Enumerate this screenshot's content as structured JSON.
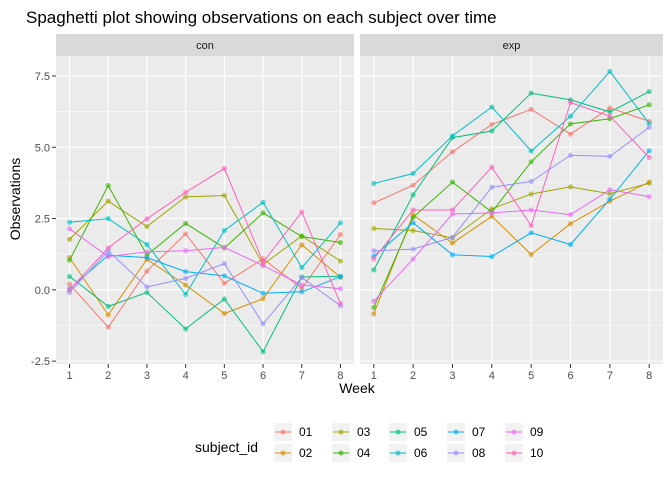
{
  "chart_data": {
    "type": "line",
    "title": "Spaghetti plot showing observations on each subject over time",
    "xlabel": "Week",
    "ylabel": "Observations",
    "x": [
      1,
      2,
      3,
      4,
      5,
      6,
      7,
      8
    ],
    "x_ticks": [
      "1",
      "2",
      "3",
      "4",
      "5",
      "6",
      "7",
      "8"
    ],
    "xlim": [
      0.65,
      8.35
    ],
    "ylim": [
      -2.6,
      8.2
    ],
    "y_ticks": [
      -2.5,
      0.0,
      2.5,
      5.0,
      7.5
    ],
    "y_tick_labels": [
      "-2.5",
      "0.0",
      "2.5",
      "5.0",
      "7.5"
    ],
    "grid": true,
    "legend": {
      "title": "subject_id",
      "placement": "bottom",
      "entries": [
        "01",
        "02",
        "03",
        "04",
        "05",
        "06",
        "07",
        "08",
        "09",
        "10"
      ]
    },
    "colors": {
      "01": "#F8766D",
      "02": "#D89000",
      "03": "#A3A500",
      "04": "#39B600",
      "05": "#00BF7D",
      "06": "#00BFC4",
      "07": "#00B0F6",
      "08": "#9590FF",
      "09": "#E76BF3",
      "10": "#FF62BC"
    },
    "panels": [
      {
        "name": "con",
        "series": [
          {
            "name": "01",
            "values": [
              0.2,
              -1.31,
              0.66,
              1.96,
              0.23,
              1.09,
              0.05,
              1.94
            ]
          },
          {
            "name": "02",
            "values": [
              1.13,
              -0.88,
              1.07,
              0.17,
              -0.83,
              -0.31,
              1.58,
              0.44
            ]
          },
          {
            "name": "03",
            "values": [
              1.77,
              3.11,
              2.22,
              3.26,
              3.31,
              0.89,
              1.89,
              1.01
            ]
          },
          {
            "name": "04",
            "values": [
              1.04,
              3.66,
              1.22,
              2.33,
              1.47,
              2.7,
              1.87,
              1.66
            ]
          },
          {
            "name": "05",
            "values": [
              0.47,
              -0.58,
              -0.09,
              -1.37,
              -0.32,
              -2.17,
              0.45,
              0.48
            ]
          },
          {
            "name": "06",
            "values": [
              2.37,
              2.5,
              1.59,
              -0.16,
              2.08,
              3.07,
              0.78,
              2.35
            ]
          },
          {
            "name": "07",
            "values": [
              0.03,
              1.21,
              1.13,
              0.64,
              0.49,
              -0.12,
              -0.07,
              0.46
            ]
          },
          {
            "name": "08",
            "values": [
              -0.09,
              1.37,
              0.1,
              0.4,
              0.92,
              -1.19,
              0.43,
              -0.56
            ]
          },
          {
            "name": "09",
            "values": [
              2.14,
              1.17,
              1.33,
              1.37,
              1.49,
              0.85,
              0.17,
              0.04
            ]
          },
          {
            "name": "10",
            "values": [
              0.0,
              1.47,
              2.49,
              3.42,
              4.26,
              0.97,
              2.73,
              -0.48
            ]
          }
        ]
      },
      {
        "name": "exp",
        "series": [
          {
            "name": "01",
            "values": [
              3.05,
              3.67,
              4.84,
              5.8,
              6.33,
              5.46,
              6.38,
              5.91
            ]
          },
          {
            "name": "02",
            "values": [
              -0.84,
              2.63,
              1.64,
              2.58,
              1.24,
              2.32,
              3.11,
              3.78
            ]
          },
          {
            "name": "03",
            "values": [
              2.15,
              2.08,
              1.82,
              2.84,
              3.36,
              3.61,
              3.37,
              3.74
            ]
          },
          {
            "name": "04",
            "values": [
              -0.62,
              2.54,
              3.78,
              2.73,
              4.49,
              5.82,
              6.0,
              6.49
            ]
          },
          {
            "name": "05",
            "values": [
              0.7,
              3.33,
              5.34,
              5.57,
              6.9,
              6.66,
              6.24,
              6.95
            ]
          },
          {
            "name": "06",
            "values": [
              3.73,
              4.08,
              5.4,
              6.41,
              4.87,
              6.09,
              7.66,
              5.83
            ]
          },
          {
            "name": "07",
            "values": [
              1.18,
              2.35,
              1.23,
              1.17,
              2.0,
              1.59,
              3.18,
              4.88
            ]
          },
          {
            "name": "08",
            "values": [
              1.37,
              1.43,
              1.84,
              3.6,
              3.8,
              4.72,
              4.68,
              5.7
            ]
          },
          {
            "name": "09",
            "values": [
              -0.4,
              1.08,
              2.66,
              2.7,
              2.8,
              2.64,
              3.51,
              3.27
            ]
          },
          {
            "name": "10",
            "values": [
              1.09,
              2.8,
              2.8,
              4.3,
              2.25,
              6.57,
              6.09,
              4.64
            ]
          }
        ]
      }
    ]
  }
}
